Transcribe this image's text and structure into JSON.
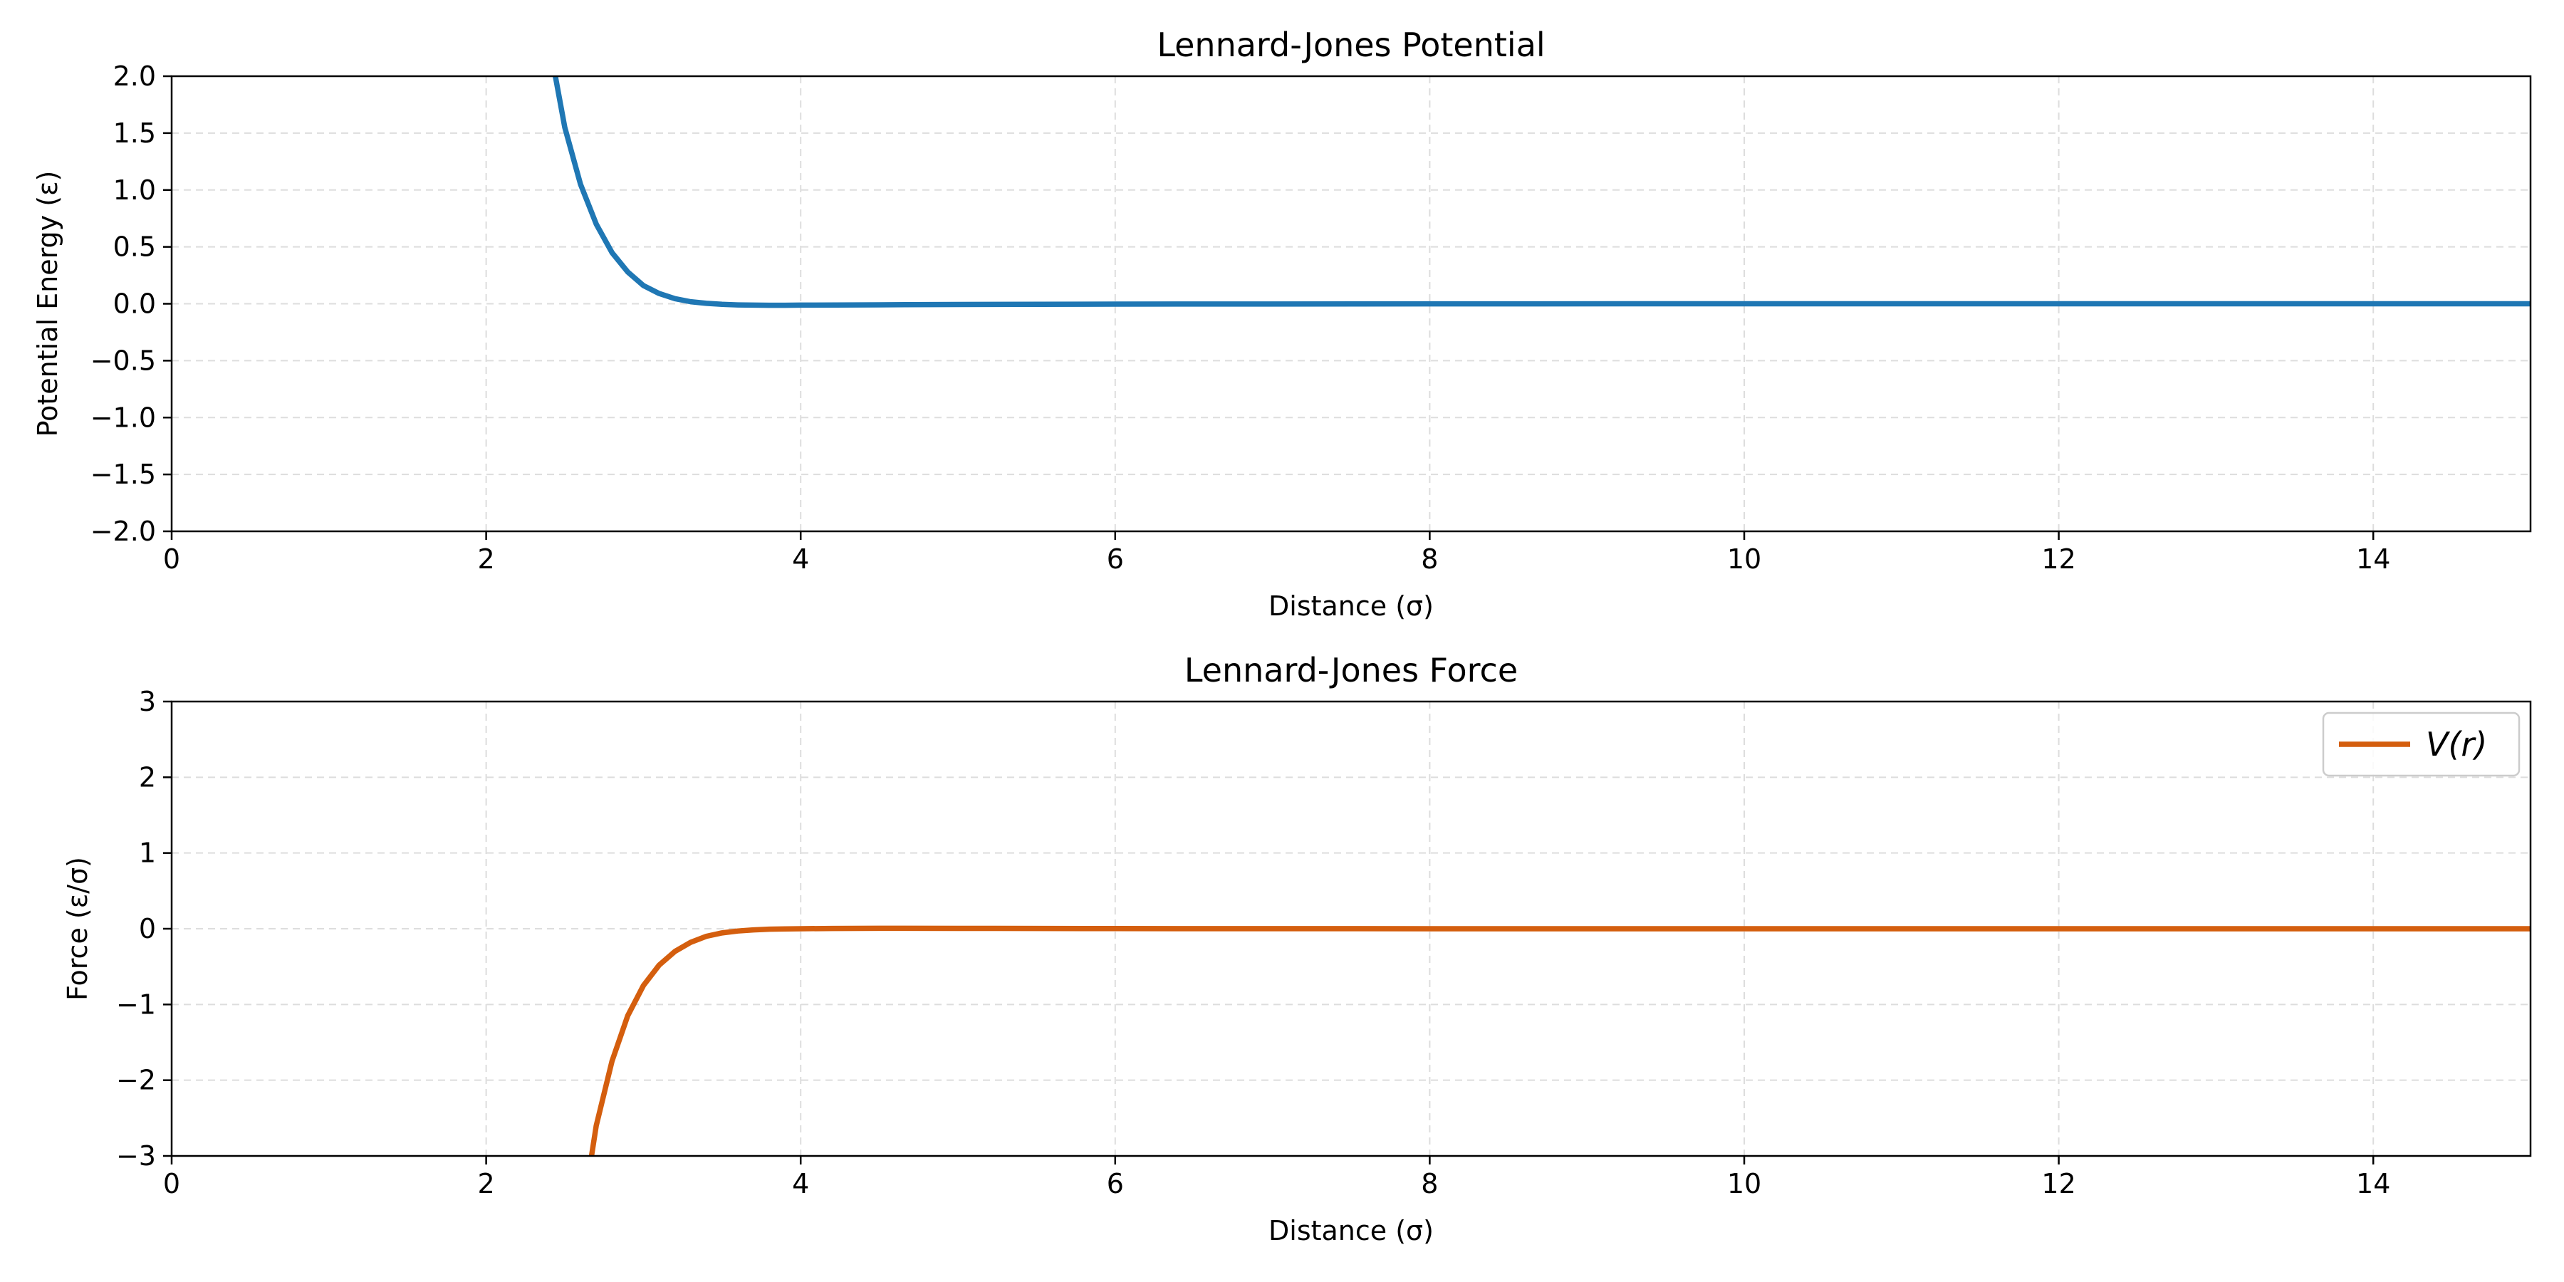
{
  "chart_data": [
    {
      "type": "line",
      "title": "Lennard-Jones Potential",
      "xlabel": "Distance (σ)",
      "ylabel": "Potential Energy (ε)",
      "xlim": [
        0,
        15
      ],
      "ylim": [
        -2,
        2
      ],
      "xticks": [
        0,
        2,
        4,
        6,
        8,
        10,
        12,
        14
      ],
      "xtick_labels": [
        "0",
        "2",
        "4",
        "6",
        "8",
        "10",
        "12",
        "14"
      ],
      "yticks": [
        -2,
        -1.5,
        -1,
        -0.5,
        0,
        0.5,
        1,
        1.5,
        2
      ],
      "ytick_labels": [
        "−2.0",
        "−1.5",
        "−1.0",
        "−0.5",
        "0.0",
        "0.5",
        "1.0",
        "1.5",
        "2.0"
      ],
      "grid": true,
      "legend": null,
      "series": [
        {
          "color": "#1f77b4",
          "x": [
            2.44,
            2.5,
            2.6,
            2.7,
            2.8,
            2.9,
            3.0,
            3.1,
            3.2,
            3.3,
            3.4,
            3.5,
            3.6,
            3.7,
            3.8,
            3.9,
            4.0,
            4.5,
            5.0,
            6.0,
            8.0,
            10.0,
            12.0,
            15.0
          ],
          "y": [
            2.0,
            1.55,
            1.05,
            0.7,
            0.45,
            0.28,
            0.16,
            0.09,
            0.045,
            0.018,
            0.004,
            -0.005,
            -0.01,
            -0.012,
            -0.013,
            -0.013,
            -0.012,
            -0.009,
            -0.006,
            -0.003,
            -0.001,
            0.0,
            0.0,
            0.0
          ]
        }
      ]
    },
    {
      "type": "line",
      "title": "Lennard-Jones Force",
      "xlabel": "Distance (σ)",
      "ylabel": "Force (ε/σ)",
      "xlim": [
        0,
        15
      ],
      "ylim": [
        -3,
        3
      ],
      "xticks": [
        0,
        2,
        4,
        6,
        8,
        10,
        12,
        14
      ],
      "xtick_labels": [
        "0",
        "2",
        "4",
        "6",
        "8",
        "10",
        "12",
        "14"
      ],
      "yticks": [
        -3,
        -2,
        -1,
        0,
        1,
        2,
        3
      ],
      "ytick_labels": [
        "−3",
        "−2",
        "−1",
        "0",
        "1",
        "2",
        "3"
      ],
      "grid": true,
      "legend": "top-right",
      "series": [
        {
          "name": "V(r)",
          "color": "#d45e0e",
          "x": [
            2.67,
            2.7,
            2.8,
            2.9,
            3.0,
            3.1,
            3.2,
            3.3,
            3.4,
            3.5,
            3.6,
            3.7,
            3.8,
            3.9,
            4.0,
            4.2,
            4.5,
            5.0,
            6.0,
            8.0,
            10.0,
            12.0,
            15.0
          ],
          "y": [
            -3.0,
            -2.6,
            -1.75,
            -1.15,
            -0.75,
            -0.48,
            -0.3,
            -0.18,
            -0.1,
            -0.055,
            -0.03,
            -0.015,
            -0.006,
            -0.002,
            0.0,
            0.004,
            0.006,
            0.005,
            0.002,
            0.0005,
            0.0,
            0.0,
            0.0
          ]
        }
      ]
    }
  ]
}
